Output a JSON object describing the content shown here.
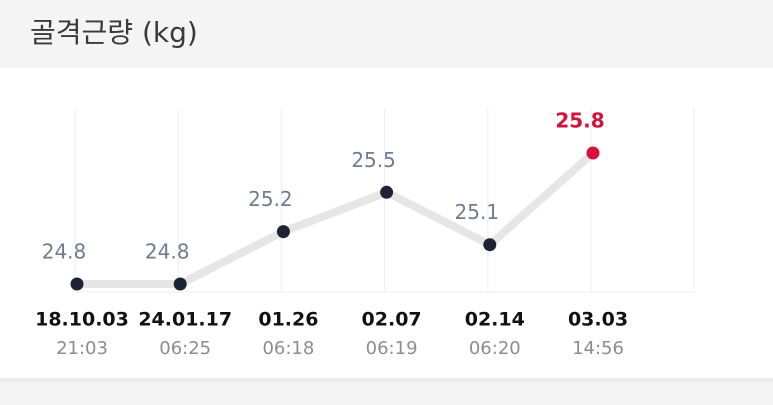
{
  "chart_data": {
    "type": "line",
    "title": "골격근량 (kg)",
    "categories": [
      "18.10.03",
      "24.01.17",
      "01.26",
      "02.07",
      "02.14",
      "03.03"
    ],
    "times": [
      "21:03",
      "06:25",
      "06:18",
      "06:19",
      "06:20",
      "14:56"
    ],
    "series": [
      {
        "values": [
          24.8,
          24.8,
          25.2,
          25.5,
          25.1,
          25.8
        ],
        "color": "#e6e6e6",
        "point_colors": [
          "#1e2235",
          "#1e2235",
          "#1e2235",
          "#1e2235",
          "#1e2235",
          "#d4123c"
        ],
        "label_colors": [
          "#6e7d92",
          "#6e7d92",
          "#6e7d92",
          "#6e7d92",
          "#6e7d92",
          "#d4123c"
        ]
      }
    ],
    "grid": true
  }
}
